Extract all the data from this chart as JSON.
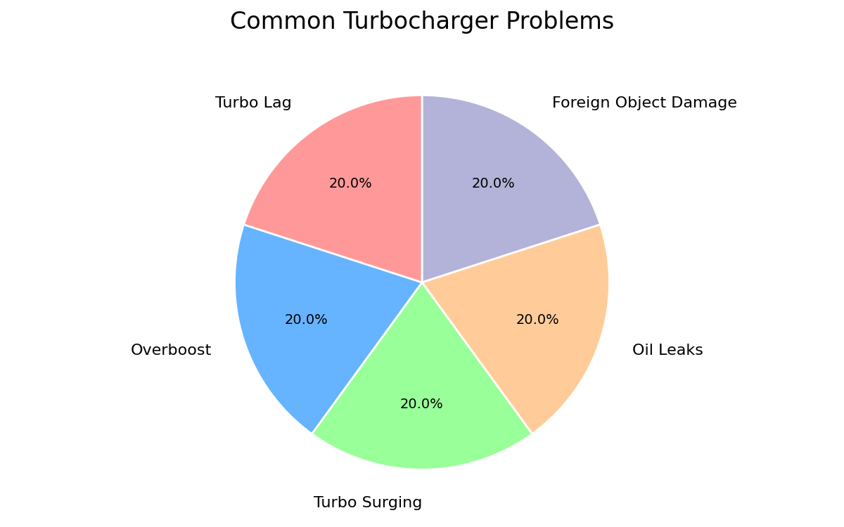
{
  "title": "Common Turbocharger Problems",
  "labels": [
    "Foreign Object Damage",
    "Oil Leaks",
    "Turbo Surging",
    "Overboost",
    "Turbo Lag"
  ],
  "values": [
    20.0,
    20.0,
    20.0,
    20.0,
    20.0
  ],
  "colors": [
    "#b3b3d9",
    "#ffcc99",
    "#99ff99",
    "#66b3ff",
    "#ff9999"
  ],
  "startangle": 90,
  "title_fontsize": 24,
  "label_fontsize": 16,
  "autopct_fontsize": 14,
  "background_color": "#ffffff",
  "pctdistance": 0.65,
  "labeldistance": 1.18
}
